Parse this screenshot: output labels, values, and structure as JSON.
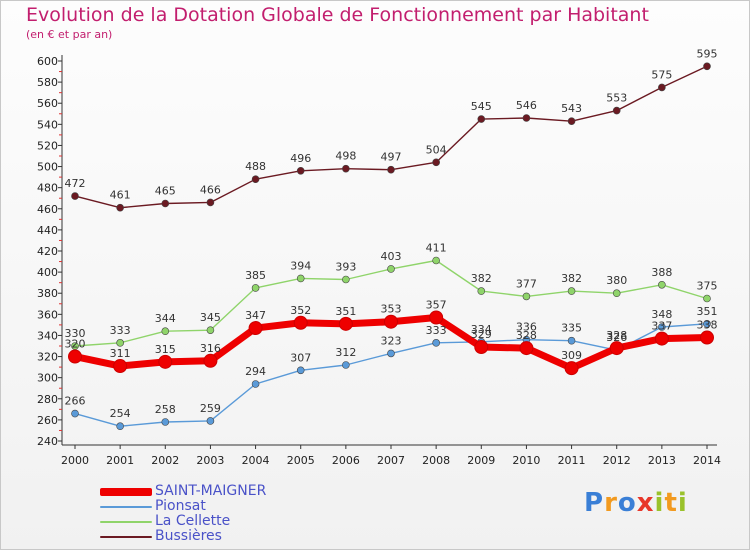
{
  "title": "Evolution de la Dotation Globale de Fonctionnement par Habitant",
  "subtitle": "(en € et par an)",
  "logo": {
    "text": "Proxiti",
    "letter_colors": [
      "#3a7fd6",
      "#f29a1f",
      "#3a7fd6",
      "#e8372a",
      "#9ac22b",
      "#f29a1f",
      "#9ac22b"
    ]
  },
  "chart_data": {
    "type": "line",
    "x": [
      2000,
      2001,
      2002,
      2003,
      2004,
      2005,
      2006,
      2007,
      2008,
      2009,
      2010,
      2011,
      2012,
      2013,
      2014
    ],
    "ylim": [
      240,
      600
    ],
    "yticks": [
      240,
      260,
      280,
      300,
      320,
      340,
      360,
      380,
      400,
      420,
      440,
      460,
      480,
      500,
      520,
      540,
      560,
      580,
      600
    ],
    "grid": false,
    "legend_position": "bottom-left",
    "series": [
      {
        "name": "Bussières",
        "color": "#6b1a22",
        "values": [
          472,
          461,
          465,
          466,
          488,
          496,
          498,
          497,
          504,
          545,
          546,
          543,
          553,
          575,
          595
        ]
      },
      {
        "name": "La Cellette",
        "color": "#8fd46a",
        "values": [
          330,
          333,
          344,
          345,
          385,
          394,
          393,
          403,
          411,
          382,
          377,
          382,
          380,
          388,
          375
        ]
      },
      {
        "name": "Pionsat",
        "color": "#5a9ad8",
        "values": [
          266,
          254,
          258,
          259,
          294,
          307,
          312,
          323,
          333,
          334,
          336,
          335,
          326,
          348,
          351
        ]
      },
      {
        "name": "SAINT-MAIGNER",
        "color": "#ee0000",
        "values": [
          320,
          311,
          315,
          316,
          347,
          352,
          351,
          353,
          357,
          329,
          328,
          309,
          328,
          337,
          338
        ]
      }
    ],
    "legend_order": [
      "SAINT-MAIGNER",
      "Pionsat",
      "La Cellette",
      "Bussières"
    ]
  }
}
